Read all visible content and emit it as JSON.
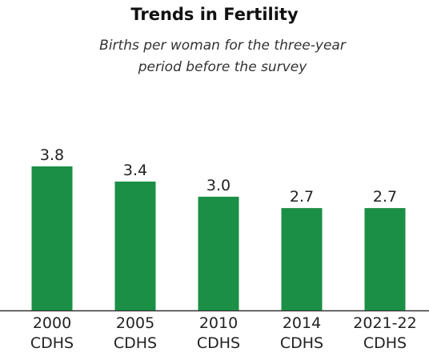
{
  "chart_data": {
    "type": "bar",
    "title": "Trends in Fertility",
    "subtitle": "Births per woman for the three-year period before the survey",
    "categories": [
      "2000 CDHS",
      "2005 CDHS",
      "2010 CDHS",
      "2014 CDHS",
      "2021-22 CDHS"
    ],
    "values": [
      3.8,
      3.4,
      3.0,
      2.7,
      2.7
    ],
    "value_labels": [
      "3.8",
      "3.4",
      "3.0",
      "2.7",
      "2.7"
    ],
    "color": "#1a8f45"
  }
}
